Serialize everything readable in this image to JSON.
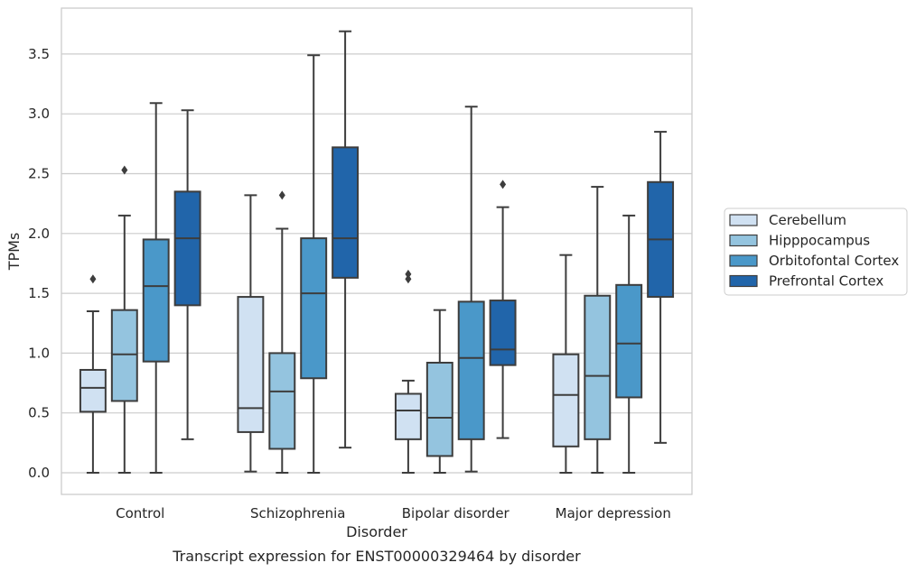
{
  "chart_data": {
    "type": "boxplot",
    "xlabel": "Disorder",
    "ylabel": "TPMs",
    "caption": "Transcript expression for ENST00000329464 by disorder",
    "ylim": [
      -0.18,
      3.88
    ],
    "yticks": [
      0.0,
      0.5,
      1.0,
      1.5,
      2.0,
      2.5,
      3.0,
      3.5
    ],
    "ytick_labels": [
      "0.0",
      "0.5",
      "1.0",
      "1.5",
      "2.0",
      "2.5",
      "3.0",
      "3.5"
    ],
    "grid": "horizontal",
    "legend_position": "right",
    "categories": [
      "Control",
      "Schizophrenia",
      "Bipolar disorder",
      "Major depression"
    ],
    "series": [
      {
        "name": "Cerebellum",
        "color": "#d0e1f2",
        "boxes": [
          {
            "whislo": 0.0,
            "q1": 0.51,
            "med": 0.71,
            "q3": 0.86,
            "whishi": 1.35,
            "fliers": [
              1.62
            ]
          },
          {
            "whislo": 0.01,
            "q1": 0.34,
            "med": 0.54,
            "q3": 1.47,
            "whishi": 2.32,
            "fliers": []
          },
          {
            "whislo": 0.0,
            "q1": 0.28,
            "med": 0.52,
            "q3": 0.66,
            "whishi": 0.77,
            "fliers": [
              1.62,
              1.66
            ]
          },
          {
            "whislo": 0.0,
            "q1": 0.22,
            "med": 0.65,
            "q3": 0.99,
            "whishi": 1.82,
            "fliers": []
          }
        ]
      },
      {
        "name": "Hipppocampus",
        "color": "#94c4df",
        "boxes": [
          {
            "whislo": 0.0,
            "q1": 0.6,
            "med": 0.99,
            "q3": 1.36,
            "whishi": 2.15,
            "fliers": [
              2.53
            ]
          },
          {
            "whislo": 0.0,
            "q1": 0.2,
            "med": 0.68,
            "q3": 1.0,
            "whishi": 2.04,
            "fliers": [
              2.32
            ]
          },
          {
            "whislo": 0.0,
            "q1": 0.14,
            "med": 0.46,
            "q3": 0.92,
            "whishi": 1.36,
            "fliers": []
          },
          {
            "whislo": 0.0,
            "q1": 0.28,
            "med": 0.81,
            "q3": 1.48,
            "whishi": 2.39,
            "fliers": []
          }
        ]
      },
      {
        "name": "Orbitofontal Cortex",
        "color": "#4a98c9",
        "boxes": [
          {
            "whislo": 0.0,
            "q1": 0.93,
            "med": 1.56,
            "q3": 1.95,
            "whishi": 3.09,
            "fliers": []
          },
          {
            "whislo": 0.0,
            "q1": 0.79,
            "med": 1.5,
            "q3": 1.96,
            "whishi": 3.49,
            "fliers": []
          },
          {
            "whislo": 0.01,
            "q1": 0.28,
            "med": 0.96,
            "q3": 1.43,
            "whishi": 3.06,
            "fliers": []
          },
          {
            "whislo": 0.0,
            "q1": 0.63,
            "med": 1.08,
            "q3": 1.57,
            "whishi": 2.15,
            "fliers": []
          }
        ]
      },
      {
        "name": "Prefrontal Cortex",
        "color": "#2165aa",
        "boxes": [
          {
            "whislo": 0.28,
            "q1": 1.4,
            "med": 1.96,
            "q3": 2.35,
            "whishi": 3.03,
            "fliers": []
          },
          {
            "whislo": 0.21,
            "q1": 1.63,
            "med": 1.96,
            "q3": 2.72,
            "whishi": 3.69,
            "fliers": []
          },
          {
            "whislo": 0.29,
            "q1": 0.9,
            "med": 1.03,
            "q3": 1.44,
            "whishi": 2.22,
            "fliers": [
              2.41
            ]
          },
          {
            "whislo": 0.25,
            "q1": 1.47,
            "med": 1.95,
            "q3": 2.43,
            "whishi": 2.85,
            "fliers": []
          }
        ]
      }
    ]
  }
}
